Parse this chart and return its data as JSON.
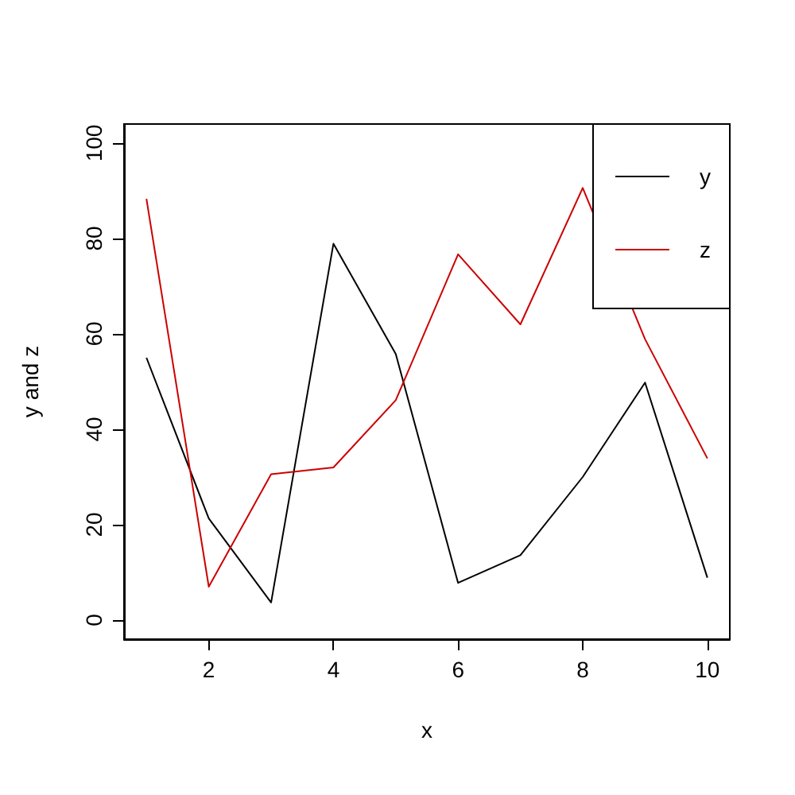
{
  "chart_data": {
    "type": "line",
    "xlabel": "x",
    "ylabel": "y and z",
    "x": [
      1,
      2,
      3,
      4,
      5,
      6,
      7,
      8,
      9,
      10
    ],
    "series": [
      {
        "name": "y",
        "color": "#000000",
        "values": [
          55,
          21.3,
          3.7,
          78.9,
          55.8,
          7.8,
          13.6,
          30,
          49.8,
          8.9
        ]
      },
      {
        "name": "z",
        "color": "#cc0000",
        "values": [
          88.3,
          7,
          30.6,
          32,
          46.1,
          76.7,
          62,
          90.6,
          58.9,
          33.9
        ]
      }
    ],
    "xlim": [
      0.64,
      10.36
    ],
    "ylim": [
      -4,
      104
    ],
    "xticks": [
      2,
      4,
      6,
      8,
      10
    ],
    "yticks": [
      0,
      20,
      40,
      60,
      80,
      100
    ],
    "grid": false,
    "legend": "top right",
    "marker": "none",
    "line_style": "solid"
  }
}
